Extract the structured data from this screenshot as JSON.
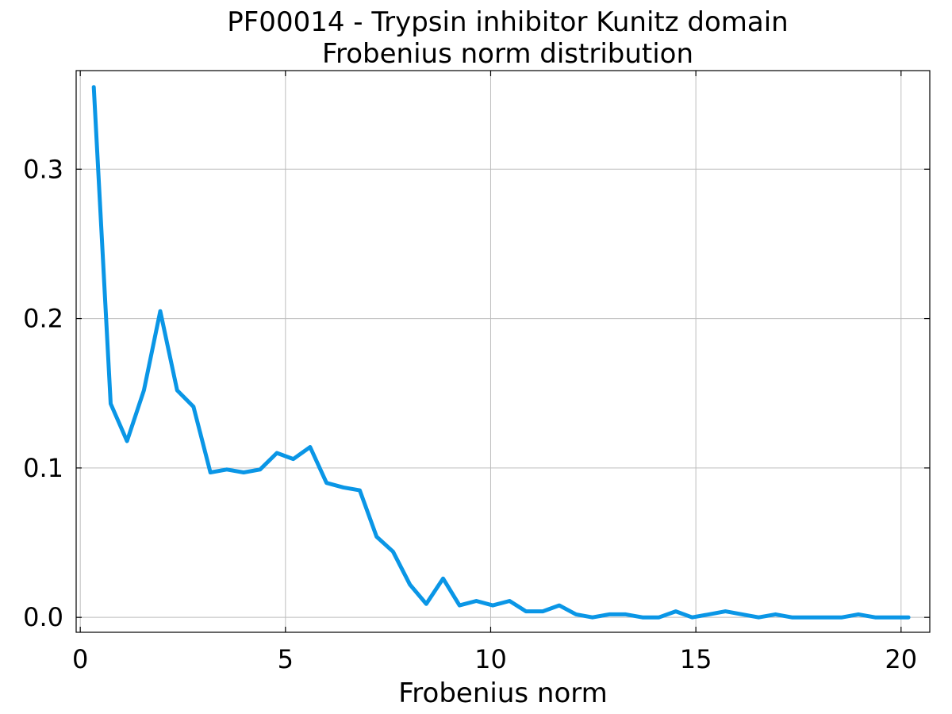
{
  "chart_data": {
    "type": "line",
    "title": "PF00014 - Trypsin inhibitor Kunitz domain",
    "subtitle": "Frobenius norm distribution",
    "xlabel": "Frobenius norm",
    "ylabel": "",
    "xlim": [
      -0.1,
      20.7
    ],
    "ylim": [
      -0.01,
      0.366
    ],
    "xticks": [
      0,
      5,
      10,
      15,
      20
    ],
    "xtick_labels": [
      "0",
      "5",
      "10",
      "15",
      "20"
    ],
    "yticks": [
      0.0,
      0.1,
      0.2,
      0.3
    ],
    "ytick_labels": [
      "0.0",
      "0.1",
      "0.2",
      "0.3"
    ],
    "grid": true,
    "legend": "none",
    "series": [
      {
        "color": "#0A96E6",
        "x": [
          0.33,
          0.74,
          1.14,
          1.55,
          1.95,
          2.36,
          2.76,
          3.17,
          3.57,
          3.98,
          4.38,
          4.79,
          5.19,
          5.6,
          6.0,
          6.41,
          6.81,
          7.22,
          7.62,
          8.03,
          8.43,
          8.84,
          9.24,
          9.65,
          10.05,
          10.46,
          10.86,
          11.27,
          11.67,
          12.08,
          12.48,
          12.89,
          13.29,
          13.7,
          14.1,
          14.51,
          14.91,
          15.32,
          15.72,
          16.13,
          16.53,
          16.94,
          17.34,
          17.75,
          18.15,
          18.56,
          18.96,
          19.37,
          19.77,
          20.18
        ],
        "values": [
          0.355,
          0.143,
          0.118,
          0.152,
          0.205,
          0.152,
          0.141,
          0.097,
          0.099,
          0.097,
          0.099,
          0.11,
          0.106,
          0.114,
          0.09,
          0.087,
          0.085,
          0.054,
          0.044,
          0.022,
          0.009,
          0.026,
          0.008,
          0.011,
          0.008,
          0.011,
          0.004,
          0.004,
          0.008,
          0.002,
          0.0,
          0.002,
          0.002,
          0.0,
          0.0,
          0.004,
          0.0,
          0.002,
          0.004,
          0.002,
          0.0,
          0.002,
          0.0,
          0.0,
          0.0,
          0.0,
          0.002,
          0.0,
          0.0,
          0.0
        ]
      }
    ]
  },
  "style": {
    "line_color": "#0A96E6",
    "grid_color": "#bdbdbd",
    "axis_color": "#000000"
  }
}
